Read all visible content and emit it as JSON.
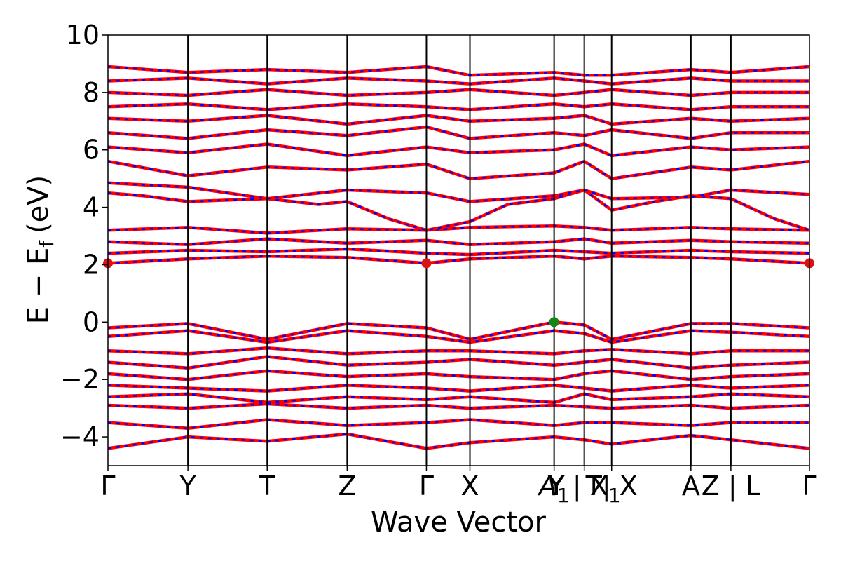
{
  "chart_data": {
    "type": "line",
    "xlabel": "Wave Vector",
    "ylabel_main": "E − E",
    "ylabel_sub": "f",
    "ylabel_unit": "(eV)",
    "ylim": [
      -5,
      10
    ],
    "yticks": [
      -4,
      -2,
      0,
      2,
      4,
      6,
      8,
      10
    ],
    "ytick_labels": [
      "−4",
      "−2",
      "0",
      "2",
      "4",
      "6",
      "8",
      "10"
    ],
    "xlim": [
      0,
      100
    ],
    "kpoints": [
      {
        "label": "Γ",
        "x": 0.0
      },
      {
        "label": "Y",
        "x": 11.4
      },
      {
        "label": "T",
        "x": 22.7
      },
      {
        "label": "Z",
        "x": 34.1
      },
      {
        "label": "Γ",
        "x": 45.4
      },
      {
        "label": "X",
        "x": 51.6
      },
      {
        "label": "A",
        "x": 63.6,
        "sub": "1",
        "combined_with": "Y"
      },
      {
        "label": "X",
        "x": 67.9,
        "sub": "1",
        "prefix": "Y | "
      },
      {
        "label": "T| X",
        "x": 71.8
      },
      {
        "label": "A",
        "x": 83.1
      },
      {
        "label": "Z | L",
        "x": 88.8
      },
      {
        "label": "Γ",
        "x": 100.0
      }
    ],
    "bands_conduction": [
      {
        "x": [
          0,
          11.4,
          22.7,
          34.1,
          45.4,
          51.6,
          63.6,
          67.9,
          71.8,
          83.1,
          88.8,
          100
        ],
        "y": [
          2.05,
          2.2,
          2.3,
          2.25,
          2.05,
          2.2,
          2.3,
          2.2,
          2.3,
          2.25,
          2.2,
          2.05
        ]
      },
      {
        "x": [
          0,
          11.4,
          22.7,
          34.1,
          45.4,
          51.6,
          63.6,
          67.9,
          71.8,
          83.1,
          88.8,
          100
        ],
        "y": [
          2.4,
          2.5,
          2.45,
          2.55,
          2.4,
          2.35,
          2.5,
          2.45,
          2.4,
          2.5,
          2.45,
          2.4
        ]
      },
      {
        "x": [
          0,
          11.4,
          22.7,
          34.1,
          45.4,
          51.6,
          63.6,
          67.9,
          71.8,
          83.1,
          88.8,
          100
        ],
        "y": [
          2.8,
          2.7,
          2.9,
          2.75,
          2.85,
          2.7,
          2.8,
          2.9,
          2.75,
          2.85,
          2.8,
          2.75
        ]
      },
      {
        "x": [
          0,
          11.4,
          22.7,
          34.1,
          45.4,
          51.6,
          63.6,
          67.9,
          71.8,
          83.1,
          88.8,
          100
        ],
        "y": [
          3.2,
          3.3,
          3.1,
          3.25,
          3.2,
          3.3,
          3.35,
          3.3,
          3.2,
          3.3,
          3.25,
          3.2
        ]
      },
      {
        "x": [
          0,
          5,
          11.4,
          22.7,
          30,
          34.1,
          40,
          45.4,
          51.6,
          57,
          63.6,
          67.9,
          71.8,
          78,
          83.1,
          88.8,
          95,
          100
        ],
        "y": [
          4.5,
          4.4,
          4.2,
          4.3,
          4.1,
          4.2,
          3.6,
          3.2,
          3.5,
          4.1,
          4.3,
          4.6,
          3.9,
          4.2,
          4.4,
          4.3,
          3.6,
          3.2
        ]
      },
      {
        "x": [
          0,
          11.4,
          22.7,
          34.1,
          45.4,
          51.6,
          63.6,
          67.9,
          71.8,
          83.1,
          88.8,
          100
        ],
        "y": [
          4.85,
          4.7,
          4.3,
          4.6,
          4.5,
          4.2,
          4.4,
          4.6,
          4.3,
          4.35,
          4.6,
          4.45
        ]
      },
      {
        "x": [
          0,
          11.4,
          22.7,
          34.1,
          45.4,
          51.6,
          63.6,
          67.9,
          71.8,
          83.1,
          88.8,
          100
        ],
        "y": [
          5.6,
          5.1,
          5.4,
          5.3,
          5.5,
          5.0,
          5.2,
          5.6,
          5.0,
          5.4,
          5.3,
          5.6
        ]
      },
      {
        "x": [
          0,
          11.4,
          22.7,
          34.1,
          45.4,
          51.6,
          63.6,
          67.9,
          71.8,
          83.1,
          88.8,
          100
        ],
        "y": [
          6.1,
          5.9,
          6.2,
          5.8,
          6.1,
          5.9,
          6.0,
          6.2,
          5.8,
          6.1,
          6.0,
          6.1
        ]
      },
      {
        "x": [
          0,
          11.4,
          22.7,
          34.1,
          45.4,
          51.6,
          63.6,
          67.9,
          71.8,
          83.1,
          88.8,
          100
        ],
        "y": [
          6.6,
          6.4,
          6.7,
          6.5,
          6.8,
          6.4,
          6.6,
          6.5,
          6.7,
          6.4,
          6.6,
          6.6
        ]
      },
      {
        "x": [
          0,
          11.4,
          22.7,
          34.1,
          45.4,
          51.6,
          63.6,
          67.9,
          71.8,
          83.1,
          88.8,
          100
        ],
        "y": [
          7.1,
          7.0,
          7.2,
          6.9,
          7.2,
          7.0,
          7.1,
          7.2,
          6.9,
          7.1,
          7.0,
          7.1
        ]
      },
      {
        "x": [
          0,
          11.4,
          22.7,
          34.1,
          45.4,
          51.6,
          63.6,
          67.9,
          71.8,
          83.1,
          88.8,
          100
        ],
        "y": [
          7.5,
          7.6,
          7.4,
          7.6,
          7.5,
          7.4,
          7.6,
          7.5,
          7.6,
          7.4,
          7.5,
          7.5
        ]
      },
      {
        "x": [
          0,
          11.4,
          22.7,
          34.1,
          45.4,
          51.6,
          63.6,
          67.9,
          71.8,
          83.1,
          88.8,
          100
        ],
        "y": [
          8.0,
          7.9,
          8.1,
          7.9,
          8.0,
          8.1,
          7.9,
          8.0,
          8.1,
          7.9,
          8.0,
          8.0
        ]
      },
      {
        "x": [
          0,
          11.4,
          22.7,
          34.1,
          45.4,
          51.6,
          63.6,
          67.9,
          71.8,
          83.1,
          88.8,
          100
        ],
        "y": [
          8.4,
          8.5,
          8.3,
          8.5,
          8.4,
          8.3,
          8.5,
          8.4,
          8.3,
          8.5,
          8.4,
          8.4
        ]
      },
      {
        "x": [
          0,
          11.4,
          22.7,
          34.1,
          45.4,
          51.6,
          63.6,
          67.9,
          71.8,
          83.1,
          88.8,
          100
        ],
        "y": [
          8.9,
          8.7,
          8.8,
          8.7,
          8.9,
          8.6,
          8.7,
          8.6,
          8.6,
          8.8,
          8.7,
          8.9
        ]
      }
    ],
    "bands_valence": [
      {
        "x": [
          0,
          11.4,
          22.7,
          34.1,
          45.4,
          51.6,
          63.6,
          67.9,
          71.8,
          83.1,
          88.8,
          100
        ],
        "y": [
          -0.2,
          -0.05,
          -0.6,
          -0.05,
          -0.2,
          -0.6,
          0.0,
          -0.1,
          -0.6,
          -0.05,
          -0.05,
          -0.2
        ]
      },
      {
        "x": [
          0,
          11.4,
          22.7,
          34.1,
          45.4,
          51.6,
          63.6,
          67.9,
          71.8,
          83.1,
          88.8,
          100
        ],
        "y": [
          -0.5,
          -0.3,
          -0.7,
          -0.3,
          -0.5,
          -0.7,
          -0.3,
          -0.4,
          -0.7,
          -0.3,
          -0.35,
          -0.5
        ]
      },
      {
        "x": [
          0,
          11.4,
          22.7,
          34.1,
          45.4,
          51.6,
          63.6,
          67.9,
          71.8,
          83.1,
          88.8,
          100
        ],
        "y": [
          -1.0,
          -1.1,
          -0.9,
          -1.1,
          -1.0,
          -1.0,
          -1.1,
          -1.0,
          -0.95,
          -1.1,
          -1.0,
          -1.0
        ]
      },
      {
        "x": [
          0,
          11.4,
          22.7,
          34.1,
          45.4,
          51.6,
          63.6,
          67.9,
          71.8,
          83.1,
          88.8,
          100
        ],
        "y": [
          -1.4,
          -1.6,
          -1.2,
          -1.5,
          -1.4,
          -1.3,
          -1.5,
          -1.4,
          -1.3,
          -1.6,
          -1.5,
          -1.4
        ]
      },
      {
        "x": [
          0,
          11.4,
          22.7,
          34.1,
          45.4,
          51.6,
          63.6,
          67.9,
          71.8,
          83.1,
          88.8,
          100
        ],
        "y": [
          -1.8,
          -2.0,
          -1.7,
          -1.9,
          -1.8,
          -1.9,
          -2.0,
          -1.8,
          -1.7,
          -2.0,
          -1.9,
          -1.8
        ]
      },
      {
        "x": [
          0,
          11.4,
          22.7,
          34.1,
          45.4,
          51.6,
          63.6,
          67.9,
          71.8,
          83.1,
          88.8,
          100
        ],
        "y": [
          -2.2,
          -2.3,
          -2.4,
          -2.2,
          -2.3,
          -2.4,
          -2.2,
          -2.3,
          -2.4,
          -2.2,
          -2.3,
          -2.2
        ]
      },
      {
        "x": [
          0,
          11.4,
          22.7,
          34.1,
          45.4,
          51.6,
          63.6,
          67.9,
          71.8,
          83.1,
          88.8,
          100
        ],
        "y": [
          -2.6,
          -2.5,
          -2.8,
          -2.6,
          -2.7,
          -2.6,
          -2.8,
          -2.5,
          -2.7,
          -2.6,
          -2.5,
          -2.6
        ]
      },
      {
        "x": [
          0,
          11.4,
          22.7,
          34.1,
          45.4,
          51.6,
          63.6,
          67.9,
          71.8,
          83.1,
          88.8,
          100
        ],
        "y": [
          -2.9,
          -3.0,
          -2.85,
          -3.0,
          -2.9,
          -3.0,
          -2.9,
          -2.95,
          -3.0,
          -2.9,
          -3.0,
          -2.9
        ]
      },
      {
        "x": [
          0,
          11.4,
          22.7,
          34.1,
          45.4,
          51.6,
          63.6,
          67.9,
          71.8,
          83.1,
          88.8,
          100
        ],
        "y": [
          -3.5,
          -3.7,
          -3.4,
          -3.6,
          -3.5,
          -3.4,
          -3.6,
          -3.5,
          -3.5,
          -3.6,
          -3.5,
          -3.5
        ]
      },
      {
        "x": [
          0,
          11.4,
          22.7,
          34.1,
          45.4,
          51.6,
          63.6,
          67.9,
          71.8,
          83.1,
          88.8,
          100
        ],
        "y": [
          -4.4,
          -4.0,
          -4.15,
          -3.9,
          -4.4,
          -4.2,
          -4.0,
          -4.1,
          -4.25,
          -3.95,
          -4.1,
          -4.4
        ]
      }
    ],
    "cbm_points": [
      {
        "x": 0.0,
        "y": 2.05
      },
      {
        "x": 45.4,
        "y": 2.05
      },
      {
        "x": 100.0,
        "y": 2.05
      }
    ],
    "vbm_points": [
      {
        "x": 63.6,
        "y": 0.0
      }
    ],
    "colors": {
      "spin_up": "#ff0000",
      "spin_down": "#0000ff",
      "cbm": "#dd1111",
      "vbm": "#118811",
      "kline": "#000000"
    }
  }
}
